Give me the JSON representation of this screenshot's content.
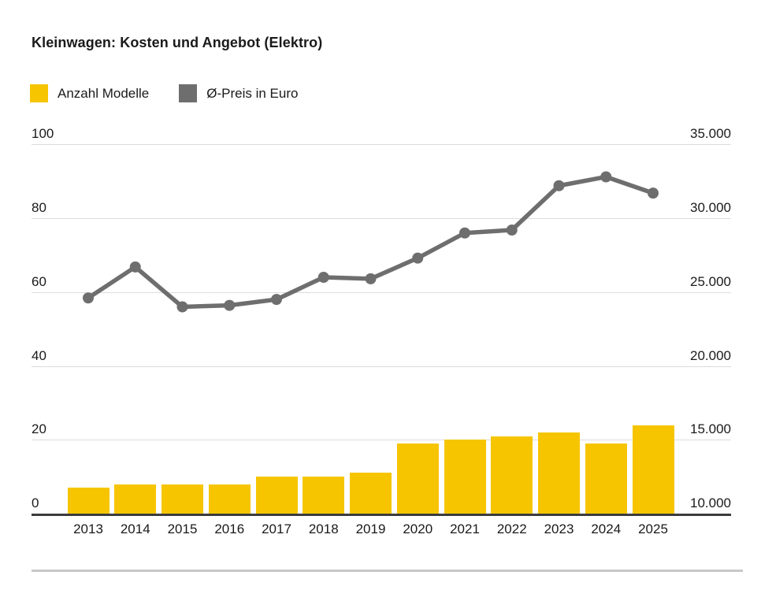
{
  "title": "Kleinwagen: Kosten und Angebot (Elektro)",
  "legend": {
    "items": [
      {
        "label": "Anzahl Modelle",
        "color": "#F6C500"
      },
      {
        "label": "Ø-Preis in Euro",
        "color": "#6E6E6E"
      }
    ]
  },
  "chart_data": {
    "type": "combo",
    "title": "Kleinwagen: Kosten und Angebot (Elektro)",
    "grid": true,
    "legend_position": "top",
    "categories": [
      "2013",
      "2014",
      "2015",
      "2016",
      "2017",
      "2018",
      "2019",
      "2020",
      "2021",
      "2022",
      "2023",
      "2024",
      "2025"
    ],
    "series": [
      {
        "name": "Anzahl Modelle",
        "type": "bar",
        "axis": "left",
        "color": "#F6C500",
        "values": [
          7,
          8,
          8,
          8,
          10,
          10,
          11,
          19,
          20,
          21,
          22,
          19,
          24
        ]
      },
      {
        "name": "Ø-Preis in Euro",
        "type": "line",
        "axis": "right",
        "color": "#6E6E6E",
        "values": [
          24600,
          26700,
          24000,
          24100,
          24500,
          26000,
          25900,
          27300,
          29000,
          29200,
          32200,
          32800,
          31700
        ]
      }
    ],
    "left_axis": {
      "ticks": [
        0,
        20,
        40,
        60,
        80,
        100
      ],
      "range": [
        0,
        100
      ]
    },
    "right_axis": {
      "tick_labels": [
        "10.000",
        "15.000",
        "20.000",
        "25.000",
        "30.000",
        "35.000"
      ],
      "tick_values": [
        10000,
        15000,
        20000,
        25000,
        30000,
        35000
      ],
      "range": [
        10000,
        35000
      ]
    }
  }
}
